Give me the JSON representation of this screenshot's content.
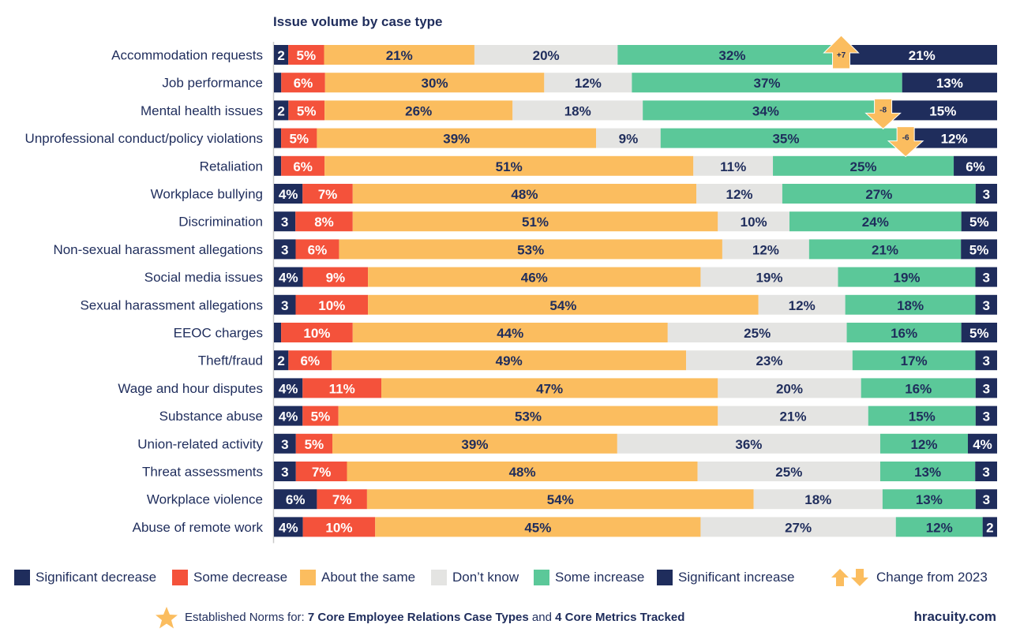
{
  "chart_data": {
    "type": "bar",
    "orientation": "horizontal",
    "stacked": "100%",
    "title": "Issue volume by case type",
    "categories": [
      "Accommodation requests",
      "Job performance",
      "Mental health issues",
      "Unprofessional conduct/policy violations",
      "Retaliation",
      "Workplace bullying",
      "Discrimination",
      "Non-sexual harassment allegations",
      "Social media issues",
      "Sexual harassment allegations",
      "EEOC charges",
      "Theft/fraud",
      "Wage and hour disputes",
      "Substance abuse",
      "Union-related activity",
      "Threat assessments",
      "Workplace violence",
      "Abuse of remote work"
    ],
    "series": [
      {
        "name": "Significant decrease",
        "color": "#1f2d5c",
        "values": [
          2,
          1,
          2,
          1,
          1,
          4,
          3,
          3,
          4,
          3,
          1,
          2,
          4,
          4,
          3,
          3,
          6,
          4
        ],
        "labels": [
          "2",
          "",
          "2",
          "",
          "",
          "4%",
          "3",
          "3",
          "4%",
          "3",
          "",
          "2",
          "4%",
          "4%",
          "3",
          "3",
          "6%",
          "4%"
        ]
      },
      {
        "name": "Some decrease",
        "color": "#f4523b",
        "values": [
          5,
          6,
          5,
          5,
          6,
          7,
          8,
          6,
          9,
          10,
          10,
          6,
          11,
          5,
          5,
          7,
          7,
          10
        ],
        "labels": [
          "5%",
          "6%",
          "5%",
          "5%",
          "6%",
          "7%",
          "8%",
          "6%",
          "9%",
          "10%",
          "10%",
          "6%",
          "11%",
          "5%",
          "5%",
          "7%",
          "7%",
          "10%"
        ]
      },
      {
        "name": "About the same",
        "color": "#fbbd5f",
        "values": [
          21,
          30,
          26,
          39,
          51,
          48,
          51,
          53,
          46,
          54,
          44,
          49,
          47,
          53,
          39,
          48,
          54,
          45
        ],
        "labels": [
          "21%",
          "30%",
          "26%",
          "39%",
          "51%",
          "48%",
          "51%",
          "53%",
          "46%",
          "54%",
          "44%",
          "49%",
          "47%",
          "53%",
          "39%",
          "48%",
          "54%",
          "45%"
        ]
      },
      {
        "name": "Don’t know",
        "color": "#e4e4e2",
        "values": [
          20,
          12,
          18,
          9,
          11,
          12,
          10,
          12,
          19,
          12,
          25,
          23,
          20,
          21,
          36,
          25,
          18,
          27
        ],
        "labels": [
          "20%",
          "12%",
          "18%",
          "9%",
          "11%",
          "12%",
          "10%",
          "12%",
          "19%",
          "12%",
          "25%",
          "23%",
          "20%",
          "21%",
          "36%",
          "25%",
          "18%",
          "27%"
        ]
      },
      {
        "name": "Some increase",
        "color": "#5bc899",
        "values": [
          32,
          37,
          34,
          35,
          25,
          27,
          24,
          21,
          19,
          18,
          16,
          17,
          16,
          15,
          12,
          13,
          13,
          12
        ],
        "labels": [
          "32%",
          "37%",
          "34%",
          "35%",
          "25%",
          "27%",
          "24%",
          "21%",
          "19%",
          "18%",
          "16%",
          "17%",
          "16%",
          "15%",
          "12%",
          "13%",
          "13%",
          "12%"
        ]
      },
      {
        "name": "Significant increase",
        "color": "#1f2d5c",
        "values": [
          21,
          13,
          15,
          12,
          6,
          3,
          5,
          5,
          3,
          3,
          5,
          3,
          3,
          3,
          4,
          3,
          3,
          2
        ],
        "labels": [
          "21%",
          "13%",
          "15%",
          "12%",
          "6%",
          "3",
          "5%",
          "5%",
          "3",
          "3",
          "5%",
          "3",
          "3",
          "3",
          "4%",
          "3",
          "3",
          "2"
        ]
      }
    ],
    "change_from_2023": [
      {
        "category": "Accommodation requests",
        "direction": "up",
        "label": "+7"
      },
      {
        "category": "Mental health issues",
        "direction": "down",
        "label": "-8"
      },
      {
        "category": "Unprofessional conduct/policy violations",
        "direction": "down",
        "label": "-6"
      }
    ],
    "xlim": [
      0,
      100
    ],
    "legend_position": "bottom"
  },
  "legend": {
    "items": [
      {
        "label": "Significant decrease",
        "color": "#1f2d5c"
      },
      {
        "label": "Some decrease",
        "color": "#f4523b"
      },
      {
        "label": "About the same",
        "color": "#fbbd5f"
      },
      {
        "label": "Don’t know",
        "color": "#e4e4e2"
      },
      {
        "label": "Some increase",
        "color": "#5bc899"
      },
      {
        "label": "Significant increase",
        "color": "#1f2d5c"
      }
    ],
    "change_label": "Change from 2023",
    "arrow_color": "#fbbd5f"
  },
  "footer": {
    "note_prefix": "Established Norms for: ",
    "note_bold1": "7 Core Employee Relations Case Types",
    "note_mid": " and ",
    "note_bold2": "4 Core Metrics Tracked",
    "brand": "hracuity.com",
    "star_color": "#fbbd5f"
  }
}
